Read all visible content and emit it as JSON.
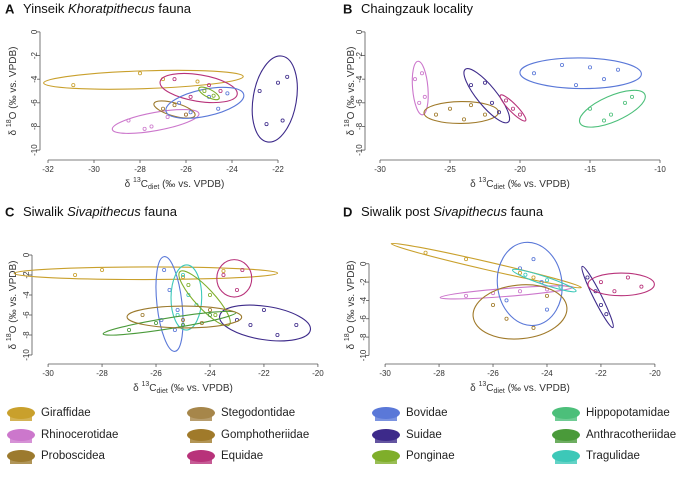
{
  "chart_data": [
    {
      "type": "scatter",
      "label": "A",
      "title": [
        "Yinseik ",
        "Khoratpithecus",
        " fauna"
      ],
      "xlabel": [
        "δ ",
        "13",
        "C",
        "diet",
        " (‰ vs. VPDB)"
      ],
      "ylabel": [
        "δ ",
        "18",
        "O (‰ vs. VPDB)"
      ],
      "xlim": [
        -32,
        -21
      ],
      "ylim": [
        -10.5,
        0.5
      ],
      "xticks": [
        -32,
        -30,
        -28,
        -26,
        -24,
        -22
      ],
      "yticks": [
        0,
        -2,
        -4,
        -6,
        -8,
        -10
      ],
      "series": [
        {
          "color": "#c9a02c",
          "x": [
            -30.9,
            -28,
            -27,
            -25.5
          ],
          "values": [
            -4.5,
            -3.5,
            -4,
            -4.2
          ]
        },
        {
          "color": "#cc77cc",
          "x": [
            -28.5,
            -27.5,
            -26.8,
            -26,
            -27.8
          ],
          "values": [
            -7.5,
            -8,
            -7.2,
            -7,
            -8.2
          ]
        },
        {
          "color": "#9c7a2e",
          "x": [
            -27,
            -26.5,
            -26
          ],
          "values": [
            -6.5,
            -6.2,
            -7
          ]
        },
        {
          "color": "#b8327a",
          "x": [
            -26.5,
            -25.8,
            -25,
            -24.5
          ],
          "values": [
            -4,
            -5.5,
            -4.5,
            -5
          ]
        },
        {
          "color": "#5a78d8",
          "x": [
            -26.3,
            -25,
            -24.6,
            -25.8,
            -24.2
          ],
          "values": [
            -6,
            -5.5,
            -6.5,
            -6.8,
            -5.2
          ]
        },
        {
          "color": "#3d2a8a",
          "x": [
            -22.8,
            -22,
            -21.8,
            -22.5,
            -21.6
          ],
          "values": [
            -5,
            -4.3,
            -7.5,
            -7.8,
            -3.8
          ]
        },
        {
          "color": "#7fae2a",
          "x": [
            -25.2,
            -24.8
          ],
          "values": [
            -5,
            -5.4
          ]
        }
      ]
    },
    {
      "type": "scatter",
      "label": "B",
      "title": [
        "Chaingzauk locality"
      ],
      "xlabel": [
        "δ ",
        "13",
        "C",
        "diet",
        " (‰ vs. VPDB)"
      ],
      "ylabel": [
        "δ ",
        "18",
        "O (‰ vs. VPDB)"
      ],
      "xlim": [
        -30.5,
        -9.5
      ],
      "ylim": [
        -10.5,
        0.5
      ],
      "xticks": [
        -30,
        -25,
        -20,
        -15,
        -10
      ],
      "yticks": [
        0,
        -2,
        -4,
        -6,
        -8,
        -10
      ],
      "series": [
        {
          "color": "#cc77cc",
          "x": [
            -27.5,
            -27,
            -26.8,
            -27.2
          ],
          "values": [
            -4,
            -3.5,
            -5.5,
            -6
          ]
        },
        {
          "color": "#a07a2a",
          "x": [
            -26,
            -25,
            -23.5,
            -24,
            -22.5
          ],
          "values": [
            -7,
            -6.5,
            -6.2,
            -7.4,
            -7
          ]
        },
        {
          "color": "#3d2a8a",
          "x": [
            -23.5,
            -22.5,
            -22,
            -21.5
          ],
          "values": [
            -4.5,
            -4.3,
            -6,
            -6.8
          ]
        },
        {
          "color": "#5a78d8",
          "x": [
            -19,
            -17,
            -15,
            -14,
            -13,
            -16
          ],
          "values": [
            -3.5,
            -2.8,
            -3,
            -4,
            -3.2,
            -4.5
          ]
        },
        {
          "color": "#4cbf7a",
          "x": [
            -15,
            -13.5,
            -12.5,
            -14,
            -12
          ],
          "values": [
            -6.5,
            -7,
            -6,
            -7.5,
            -5.5
          ]
        },
        {
          "color": "#b8327a",
          "x": [
            -20.5,
            -20,
            -21
          ],
          "values": [
            -6.5,
            -7,
            -5.8
          ]
        }
      ]
    },
    {
      "type": "scatter",
      "label": "C",
      "title": [
        "Siwalik ",
        "Sivapithecus",
        " fauna"
      ],
      "xlabel": [
        "δ ",
        "13",
        "C",
        "diet",
        " (‰ vs. VPDB)"
      ],
      "ylabel": [
        "δ ",
        "18",
        "O (‰ vs. VPDB)"
      ],
      "xlim": [
        -30.3,
        -19.7
      ],
      "ylim": [
        -10.5,
        0.5
      ],
      "xticks": [
        -30,
        -28,
        -26,
        -24,
        -22,
        -20
      ],
      "yticks": [
        0,
        -2,
        -4,
        -6,
        -8,
        -10
      ],
      "series": [
        {
          "color": "#c9a02c",
          "x": [
            -29,
            -28,
            -25,
            -23.5
          ],
          "values": [
            -2,
            -1.5,
            -2.2,
            -1.6
          ]
        },
        {
          "color": "#5a78d8",
          "x": [
            -25.7,
            -25.5,
            -25.2,
            -25.8,
            -25.3
          ],
          "values": [
            -1.5,
            -3.5,
            -5.5,
            -6.5,
            -7.5
          ]
        },
        {
          "color": "#3cc8b8",
          "x": [
            -25,
            -24.8,
            -25.2,
            -24.5
          ],
          "values": [
            -2,
            -4,
            -6,
            -5
          ]
        },
        {
          "color": "#7fae2a",
          "x": [
            -24.8,
            -24,
            -23.8
          ],
          "values": [
            -3,
            -4,
            -6
          ]
        },
        {
          "color": "#b8327a",
          "x": [
            -23.5,
            -23,
            -22.8
          ],
          "values": [
            -2,
            -3.5,
            -1.5
          ]
        },
        {
          "color": "#3d2a8a",
          "x": [
            -23,
            -22.5,
            -22,
            -21.5,
            -20.8
          ],
          "values": [
            -6.5,
            -7,
            -5.5,
            -8,
            -7
          ]
        },
        {
          "color": "#4a9a3a",
          "x": [
            -27,
            -26,
            -25,
            -24
          ],
          "values": [
            -7.5,
            -6.8,
            -7,
            -6
          ]
        },
        {
          "color": "#9c7a2e",
          "x": [
            -26.5,
            -25,
            -24,
            -24.3
          ],
          "values": [
            -6,
            -6.5,
            -5.5,
            -6.8
          ]
        }
      ]
    },
    {
      "type": "scatter",
      "label": "D",
      "title": [
        "Siwalik post ",
        "Sivapithecus",
        " fauna"
      ],
      "xlabel": [
        "δ ",
        "13",
        "C",
        "diet",
        " (‰ vs. VPDB)"
      ],
      "ylabel": [
        "δ ",
        "18",
        "O (‰ vs. VPDB)"
      ],
      "xlim": [
        -30.3,
        -19.7
      ],
      "ylim": [
        -10.5,
        1.5
      ],
      "xticks": [
        -30,
        -28,
        -26,
        -24,
        -22,
        -20
      ],
      "yticks": [
        0,
        -2,
        -4,
        -6,
        -8,
        -10
      ],
      "series": [
        {
          "color": "#c9a02c",
          "x": [
            -28.5,
            -27,
            -25,
            -24.5
          ],
          "values": [
            1.2,
            0.5,
            -1,
            -1.5
          ]
        },
        {
          "color": "#cc77cc",
          "x": [
            -27,
            -26,
            -25,
            -24
          ],
          "values": [
            -3.5,
            -3.2,
            -3,
            -2.8
          ]
        },
        {
          "color": "#5a78d8",
          "x": [
            -25,
            -24.5,
            -24.2,
            -25.5,
            -24
          ],
          "values": [
            -0.5,
            0.5,
            -2,
            -4,
            -5
          ]
        },
        {
          "color": "#a07a2a",
          "x": [
            -26,
            -25.5,
            -24.5,
            -24
          ],
          "values": [
            -4.5,
            -6,
            -7,
            -3.5
          ]
        },
        {
          "color": "#3cc8b8",
          "x": [
            -24.8,
            -24,
            -23.5
          ],
          "values": [
            -1.2,
            -1.8,
            -2.5
          ]
        },
        {
          "color": "#3d2a8a",
          "x": [
            -22.5,
            -22.2,
            -22,
            -21.8
          ],
          "values": [
            -1.5,
            -3,
            -4.5,
            -5.5
          ]
        },
        {
          "color": "#b8327a",
          "x": [
            -22,
            -21,
            -20.5,
            -21.5
          ],
          "values": [
            -2,
            -1.5,
            -2.5,
            -3
          ]
        }
      ]
    }
  ],
  "legend": [
    {
      "name": "Giraffidae",
      "color": "#c9a02c"
    },
    {
      "name": "Rhinocerotidae",
      "color": "#cc77cc"
    },
    {
      "name": "Proboscidea",
      "color": "#9c7a2e"
    },
    {
      "name": "Stegodontidae",
      "color": "#a6864a"
    },
    {
      "name": "Gomphotheriidae",
      "color": "#a07a2a"
    },
    {
      "name": "Equidae",
      "color": "#b8327a"
    },
    {
      "name": "Bovidae",
      "color": "#5a78d8"
    },
    {
      "name": "Suidae",
      "color": "#3d2a8a"
    },
    {
      "name": "Ponginae",
      "color": "#7fae2a"
    },
    {
      "name": "Hippopotamidae",
      "color": "#4cbf7a"
    },
    {
      "name": "Anthracotheriidae",
      "color": "#4a9a3a"
    },
    {
      "name": "Tragulidae",
      "color": "#3cc8b8"
    }
  ]
}
